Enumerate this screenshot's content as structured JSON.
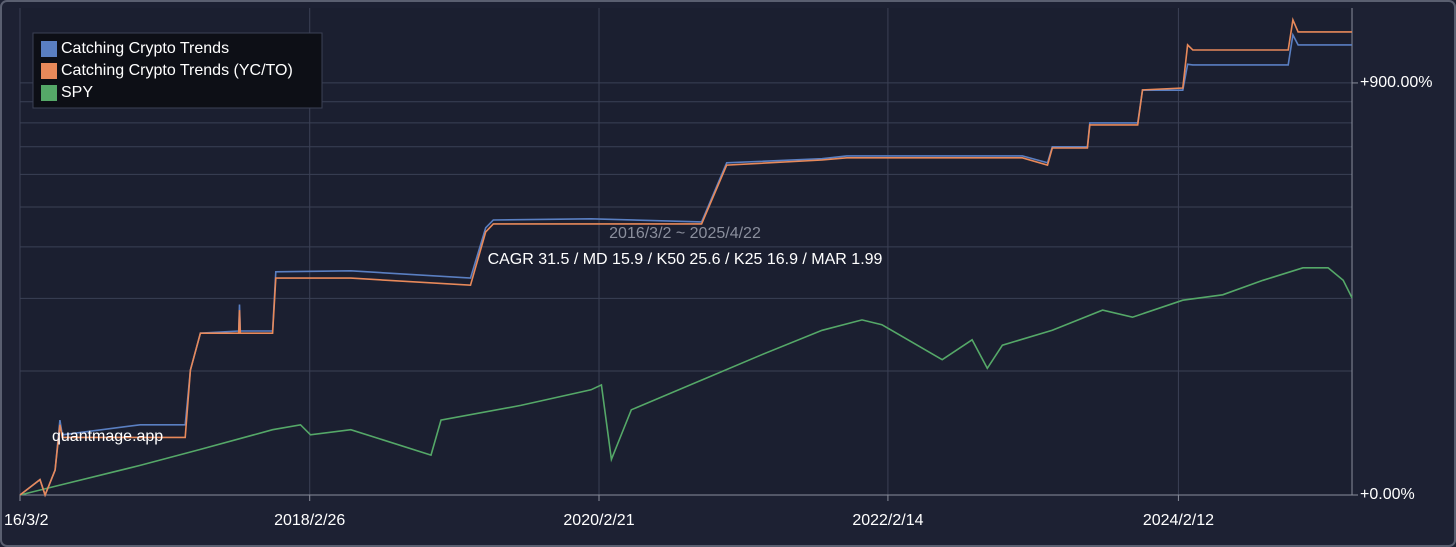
{
  "chart_data": {
    "type": "line",
    "log": true,
    "grid": true,
    "legend": "upper left",
    "xlim": [
      "2016-03-02",
      "2025-04-22"
    ],
    "xticks": [
      {
        "value": "2016-03-02",
        "label": "16/3/2"
      },
      {
        "value": "2018-02-26",
        "label": "2018/2/26"
      },
      {
        "value": "2020-02-21",
        "label": "2020/2/21"
      },
      {
        "value": "2022-02-14",
        "label": "2022/2/14"
      },
      {
        "value": "2024-02-12",
        "label": "2024/2/12"
      }
    ],
    "ylim": [
      0,
      1420
    ],
    "yticks": [
      {
        "value": 0,
        "label": "+0.00%"
      },
      {
        "value": 900,
        "label": "+900.00%"
      }
    ],
    "y_grid": [
      100,
      200,
      300,
      400,
      500,
      600,
      700,
      800
    ],
    "annotations": [
      "2016/3/2 ~ 2025/4/22",
      "CAGR 31.5 / MD 15.9 / K50 25.6 / K25 16.9 / MAR 1.99",
      "quantmage.app"
    ],
    "series": [
      {
        "name": "Catching Crypto Trends",
        "color": "#5a7fc2",
        "x": [
          "2016-03-02",
          "2016-04-21",
          "2016-05-04",
          "2016-05-29",
          "2016-06-10",
          "2016-06-16",
          "2016-12-28",
          "2017-04-20",
          "2017-05-03",
          "2017-05-28",
          "2017-09-01",
          "2017-09-03",
          "2017-09-05",
          "2017-11-25",
          "2017-12-03",
          "2018-06-09",
          "2019-04-05",
          "2019-05-13",
          "2019-06-01",
          "2020-02-01",
          "2020-11-04",
          "2021-01-06",
          "2021-09-02",
          "2021-11-03",
          "2023-01-17",
          "2023-03-21",
          "2023-04-02",
          "2023-06-29",
          "2023-07-05",
          "2023-11-02",
          "2023-11-14",
          "2024-02-23",
          "2024-03-06",
          "2024-03-19",
          "2024-11-13",
          "2024-11-25",
          "2024-12-08",
          "2025-04-22"
        ],
        "values": [
          0,
          9,
          0,
          15,
          52,
          40,
          48,
          48,
          101,
          147,
          150,
          190,
          150,
          150,
          248,
          250,
          236,
          345,
          365,
          368,
          360,
          540,
          555,
          565,
          565,
          540,
          600,
          600,
          700,
          700,
          860,
          860,
          1010,
          1006,
          1006,
          1208,
          1137,
          1137
        ]
      },
      {
        "name": "Catching Crypto Trends (YC/TO)",
        "color": "#e8895a",
        "x": [
          "2016-03-02",
          "2016-04-21",
          "2016-05-04",
          "2016-05-29",
          "2016-06-10",
          "2016-06-16",
          "2016-12-28",
          "2017-04-20",
          "2017-05-03",
          "2017-05-28",
          "2017-09-01",
          "2017-09-03",
          "2017-09-05",
          "2017-11-25",
          "2017-12-03",
          "2018-06-09",
          "2019-04-05",
          "2019-05-13",
          "2019-06-01",
          "2020-02-01",
          "2020-11-04",
          "2021-01-06",
          "2021-09-02",
          "2021-11-03",
          "2023-01-17",
          "2023-03-21",
          "2023-04-02",
          "2023-06-29",
          "2023-07-05",
          "2023-11-02",
          "2023-11-14",
          "2024-02-23",
          "2024-03-06",
          "2024-03-19",
          "2024-11-13",
          "2024-11-25",
          "2024-12-08",
          "2025-04-22"
        ],
        "values": [
          0,
          9,
          0,
          15,
          48,
          38,
          38,
          38,
          101,
          147,
          147,
          181,
          147,
          147,
          236,
          236,
          223,
          335,
          355,
          355,
          355,
          532,
          550,
          558,
          558,
          532,
          595,
          595,
          691,
          691,
          862,
          872,
          1137,
          1102,
          1102,
          1322,
          1230,
          1230
        ]
      },
      {
        "name": "SPY",
        "color": "#55a868",
        "x": [
          "2016-03-02",
          "2016-06-10",
          "2016-12-28",
          "2017-05-28",
          "2017-11-25",
          "2018-02-03",
          "2018-02-28",
          "2018-06-09",
          "2018-12-27",
          "2019-01-21",
          "2019-08-09",
          "2020-02-01",
          "2020-02-27",
          "2020-03-23",
          "2020-05-12",
          "2020-11-04",
          "2021-04-04",
          "2021-09-02",
          "2021-12-11",
          "2022-01-30",
          "2022-06-30",
          "2022-09-13",
          "2022-10-21",
          "2022-11-28",
          "2023-04-02",
          "2023-08-06",
          "2023-10-20",
          "2024-02-23",
          "2024-06-02",
          "2024-09-11",
          "2024-12-20",
          "2025-02-21",
          "2025-03-31",
          "2025-04-22"
        ],
        "values": [
          0,
          5.7,
          18,
          29,
          44,
          48,
          40,
          44,
          25,
          52,
          65,
          80,
          85,
          22,
          61,
          90,
          119,
          151,
          166,
          159,
          113,
          138,
          103,
          131,
          151,
          181,
          170,
          197,
          206,
          232,
          256,
          256,
          232,
          201
        ]
      }
    ]
  }
}
